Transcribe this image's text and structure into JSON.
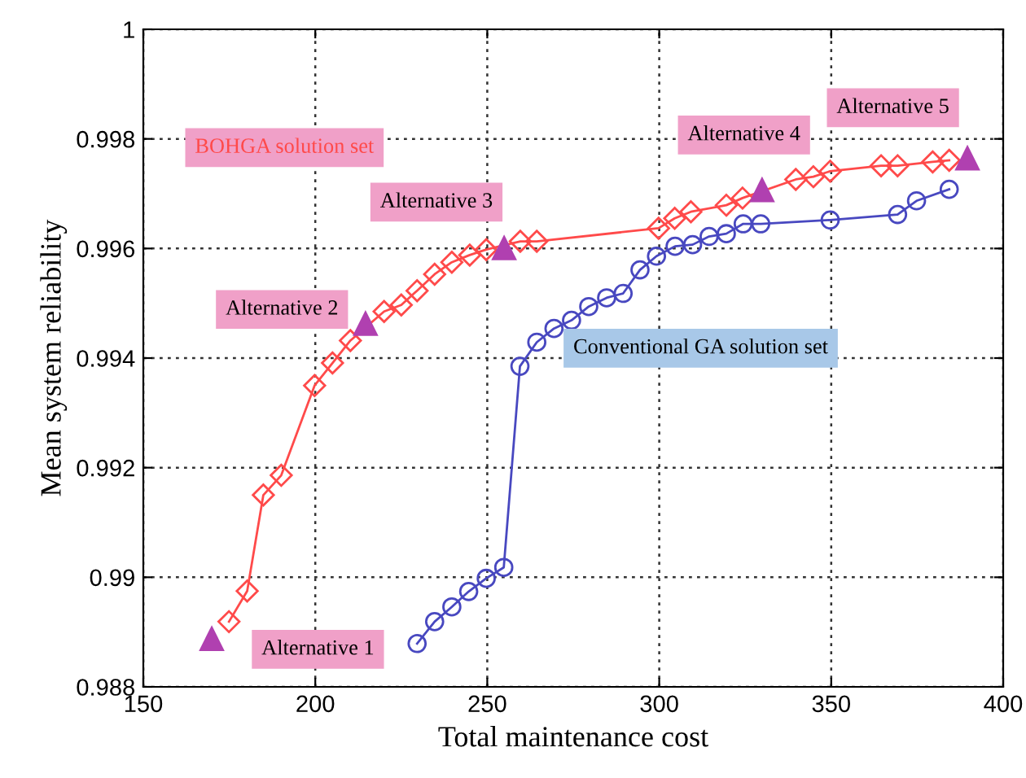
{
  "chart_data": {
    "type": "line",
    "xlabel": "Total maintenance cost",
    "ylabel": "Mean system reliability",
    "xlim": [
      150,
      400
    ],
    "xticks": [
      150,
      200,
      250,
      300,
      350,
      400
    ],
    "ylim": [
      0.988,
      1
    ],
    "yticks": [
      0.988,
      {
        "value": 0.99,
        "label": "0.99"
      },
      0.992,
      0.994,
      0.996,
      0.998,
      1
    ],
    "grid": true,
    "legend": false,
    "series": [
      {
        "name": "BOHGA solution set",
        "color": "#ff4a4a",
        "marker": "diamond",
        "x": [
          174.9,
          180.2,
          184.9,
          190.1,
          199.8,
          205.0,
          210.2,
          220.0,
          225.0,
          229.6,
          234.7,
          239.7,
          244.9,
          249.7,
          259.6,
          264.4,
          299.8,
          304.5,
          309.2,
          319.5,
          324.2,
          339.7,
          344.8,
          349.7,
          364.5,
          369.3,
          379.5,
          384.3
        ],
        "values": [
          0.98919,
          0.98975,
          0.9915,
          0.99186,
          0.9935,
          0.99391,
          0.99432,
          0.99485,
          0.99497,
          0.99523,
          0.99553,
          0.99575,
          0.99588,
          0.99598,
          0.99613,
          0.99613,
          0.99637,
          0.99655,
          0.99667,
          0.99679,
          0.99692,
          0.99726,
          0.99731,
          0.99741,
          0.99751,
          0.99751,
          0.99758,
          0.99761
        ]
      },
      {
        "name": "Conventional GA solution set",
        "color": "#4848c0",
        "marker": "circle",
        "x": [
          229.6,
          234.7,
          239.7,
          244.6,
          249.7,
          254.8,
          259.5,
          264.4,
          269.4,
          274.5,
          279.5,
          284.7,
          289.5,
          294.4,
          299.2,
          304.6,
          309.7,
          314.5,
          319.5,
          324.4,
          329.5,
          349.7,
          369.3,
          374.8,
          384.3
        ],
        "values": [
          0.98879,
          0.98919,
          0.98946,
          0.98974,
          0.98998,
          0.99018,
          0.99385,
          0.99429,
          0.99454,
          0.99469,
          0.99494,
          0.9951,
          0.99518,
          0.99561,
          0.99586,
          0.99604,
          0.99607,
          0.99622,
          0.99627,
          0.99645,
          0.99645,
          0.99652,
          0.99662,
          0.99687,
          0.99708
        ]
      },
      {
        "type": "scatter",
        "color": "#b040b0",
        "marker": "triangle",
        "x": [
          169.9,
          214.6,
          254.9,
          329.9,
          389.6
        ],
        "values": [
          0.98889,
          0.99464,
          0.99602,
          0.99708,
          0.99766
        ]
      }
    ],
    "annotations": [
      {
        "text": "Alternative 1",
        "x": 169.9,
        "y": 0.98889
      },
      {
        "text": "Alternative 2",
        "x": 214.6,
        "y": 0.99464
      },
      {
        "text": "Alternative 3",
        "x": 254.9,
        "y": 0.99602
      },
      {
        "text": "Alternative 4",
        "x": 329.9,
        "y": 0.99708
      },
      {
        "text": "Alternative 5",
        "x": 389.6,
        "y": 0.99766
      }
    ]
  }
}
